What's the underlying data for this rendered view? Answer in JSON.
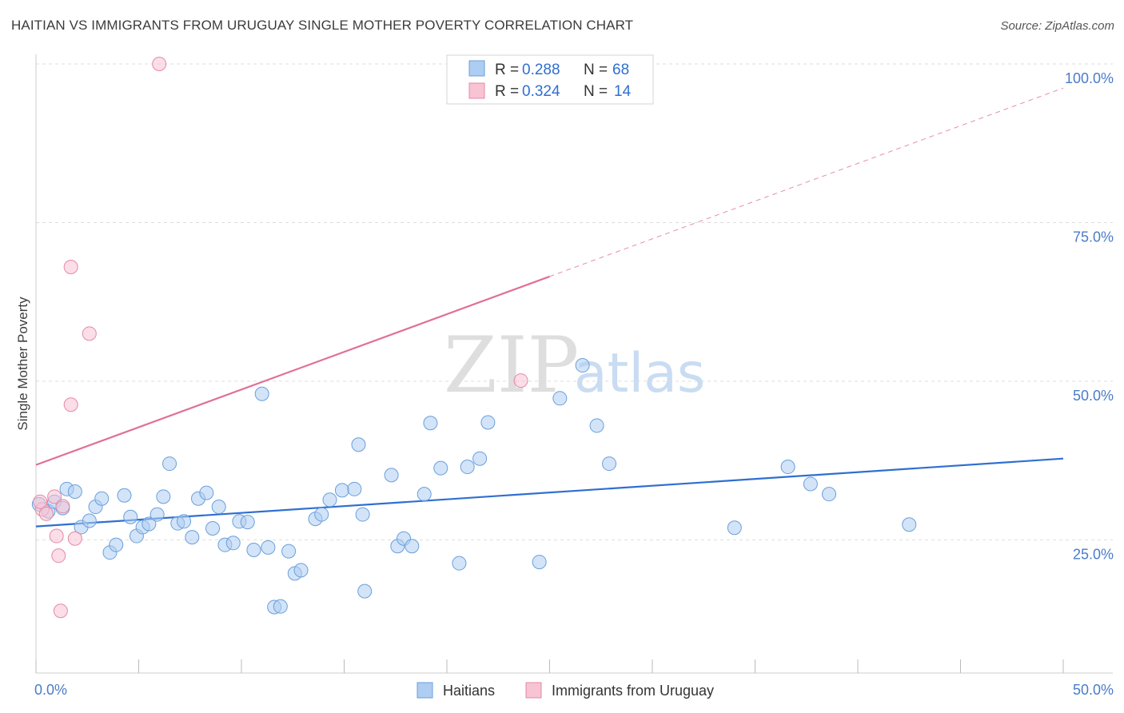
{
  "title": "HAITIAN VS IMMIGRANTS FROM URUGUAY SINGLE MOTHER POVERTY CORRELATION CHART",
  "source": "Source: ZipAtlas.com",
  "watermark": {
    "zip": "ZIP",
    "atlas": "atlas"
  },
  "colors": {
    "blue_fill": "#aecdf2",
    "blue_stroke": "#6a9fdb",
    "blue_line": "#2f6fd0",
    "pink_fill": "#f8c3d3",
    "pink_stroke": "#e58aa6",
    "pink_line": "#e07096",
    "grid": "#dddddd",
    "tick_text": "#4a7cc9"
  },
  "legend": {
    "rows": [
      {
        "r_label": "R =",
        "r_value": "0.288",
        "n_label": "N =",
        "n_value": "68",
        "series": "blue"
      },
      {
        "r_label": "R =",
        "r_value": "0.324",
        "n_label": "N =",
        "n_value": "14",
        "series": "pink"
      }
    ]
  },
  "chart_data": {
    "type": "scatter",
    "title": "HAITIAN VS IMMIGRANTS FROM URUGUAY SINGLE MOTHER POVERTY CORRELATION CHART",
    "xlabel": "",
    "ylabel": "Single Mother Poverty",
    "xlim": [
      0,
      50
    ],
    "ylim": [
      4,
      100
    ],
    "x_tick_labels": [
      "0.0%",
      "50.0%"
    ],
    "y_ticks": [
      25,
      50,
      75,
      100
    ],
    "y_tick_labels": [
      "25.0%",
      "50.0%",
      "75.0%",
      "100.0%"
    ],
    "series": [
      {
        "name": "Haitians",
        "color": "blue",
        "trend": {
          "x": [
            0,
            50
          ],
          "y": [
            27.1,
            37.8
          ],
          "dashed_x": null
        },
        "points": [
          [
            0.15,
            30.6
          ],
          [
            0.6,
            29.5
          ],
          [
            0.9,
            31.0
          ],
          [
            1.3,
            30.0
          ],
          [
            1.5,
            33.0
          ],
          [
            1.9,
            32.6
          ],
          [
            2.2,
            27.0
          ],
          [
            2.6,
            28.0
          ],
          [
            2.9,
            30.2
          ],
          [
            3.2,
            31.5
          ],
          [
            3.6,
            23.0
          ],
          [
            3.9,
            24.2
          ],
          [
            4.3,
            32.0
          ],
          [
            4.6,
            28.6
          ],
          [
            4.9,
            25.6
          ],
          [
            5.2,
            27.0
          ],
          [
            5.5,
            27.5
          ],
          [
            5.9,
            29.0
          ],
          [
            6.2,
            31.8
          ],
          [
            6.5,
            37.0
          ],
          [
            6.9,
            27.6
          ],
          [
            7.2,
            27.9
          ],
          [
            7.6,
            25.4
          ],
          [
            7.9,
            31.5
          ],
          [
            8.3,
            32.4
          ],
          [
            8.6,
            26.8
          ],
          [
            8.9,
            30.2
          ],
          [
            9.2,
            24.2
          ],
          [
            9.6,
            24.5
          ],
          [
            9.9,
            27.9
          ],
          [
            10.3,
            27.8
          ],
          [
            10.6,
            23.4
          ],
          [
            11.0,
            48.0
          ],
          [
            11.3,
            23.8
          ],
          [
            11.6,
            14.4
          ],
          [
            11.9,
            14.5
          ],
          [
            12.3,
            23.2
          ],
          [
            12.6,
            19.7
          ],
          [
            12.9,
            20.2
          ],
          [
            13.6,
            28.3
          ],
          [
            13.9,
            29.0
          ],
          [
            14.3,
            31.3
          ],
          [
            14.9,
            32.8
          ],
          [
            15.5,
            33.0
          ],
          [
            15.7,
            40.0
          ],
          [
            15.9,
            29.0
          ],
          [
            16.0,
            16.9
          ],
          [
            17.3,
            35.2
          ],
          [
            17.6,
            24.0
          ],
          [
            17.9,
            25.2
          ],
          [
            18.3,
            24.0
          ],
          [
            18.9,
            32.2
          ],
          [
            19.2,
            43.4
          ],
          [
            19.7,
            36.3
          ],
          [
            20.6,
            21.3
          ],
          [
            21.0,
            36.5
          ],
          [
            21.6,
            37.8
          ],
          [
            22.0,
            43.5
          ],
          [
            24.5,
            21.5
          ],
          [
            25.5,
            47.3
          ],
          [
            26.6,
            52.5
          ],
          [
            27.3,
            43.0
          ],
          [
            27.9,
            37.0
          ],
          [
            34.0,
            26.9
          ],
          [
            36.6,
            36.5
          ],
          [
            37.7,
            33.8
          ],
          [
            38.6,
            32.2
          ],
          [
            42.5,
            27.4
          ]
        ]
      },
      {
        "name": "Immigrants from Uruguay",
        "color": "pink",
        "trend": {
          "x": [
            0,
            25
          ],
          "y": [
            36.8,
            66.5
          ],
          "dashed_x": [
            25,
            50
          ],
          "dashed_y": [
            66.5,
            96.2
          ]
        },
        "points": [
          [
            0.3,
            29.8
          ],
          [
            0.5,
            29.1
          ],
          [
            0.9,
            31.8
          ],
          [
            1.0,
            25.6
          ],
          [
            1.1,
            22.5
          ],
          [
            1.2,
            13.8
          ],
          [
            1.3,
            30.3
          ],
          [
            1.7,
            46.3
          ],
          [
            1.7,
            68.0
          ],
          [
            1.9,
            25.2
          ],
          [
            2.6,
            57.5
          ],
          [
            6.0,
            100.0
          ],
          [
            23.6,
            50.1
          ],
          [
            0.2,
            31.0
          ]
        ]
      }
    ],
    "legend_labels": [
      "Haitians",
      "Immigrants from Uruguay"
    ]
  }
}
